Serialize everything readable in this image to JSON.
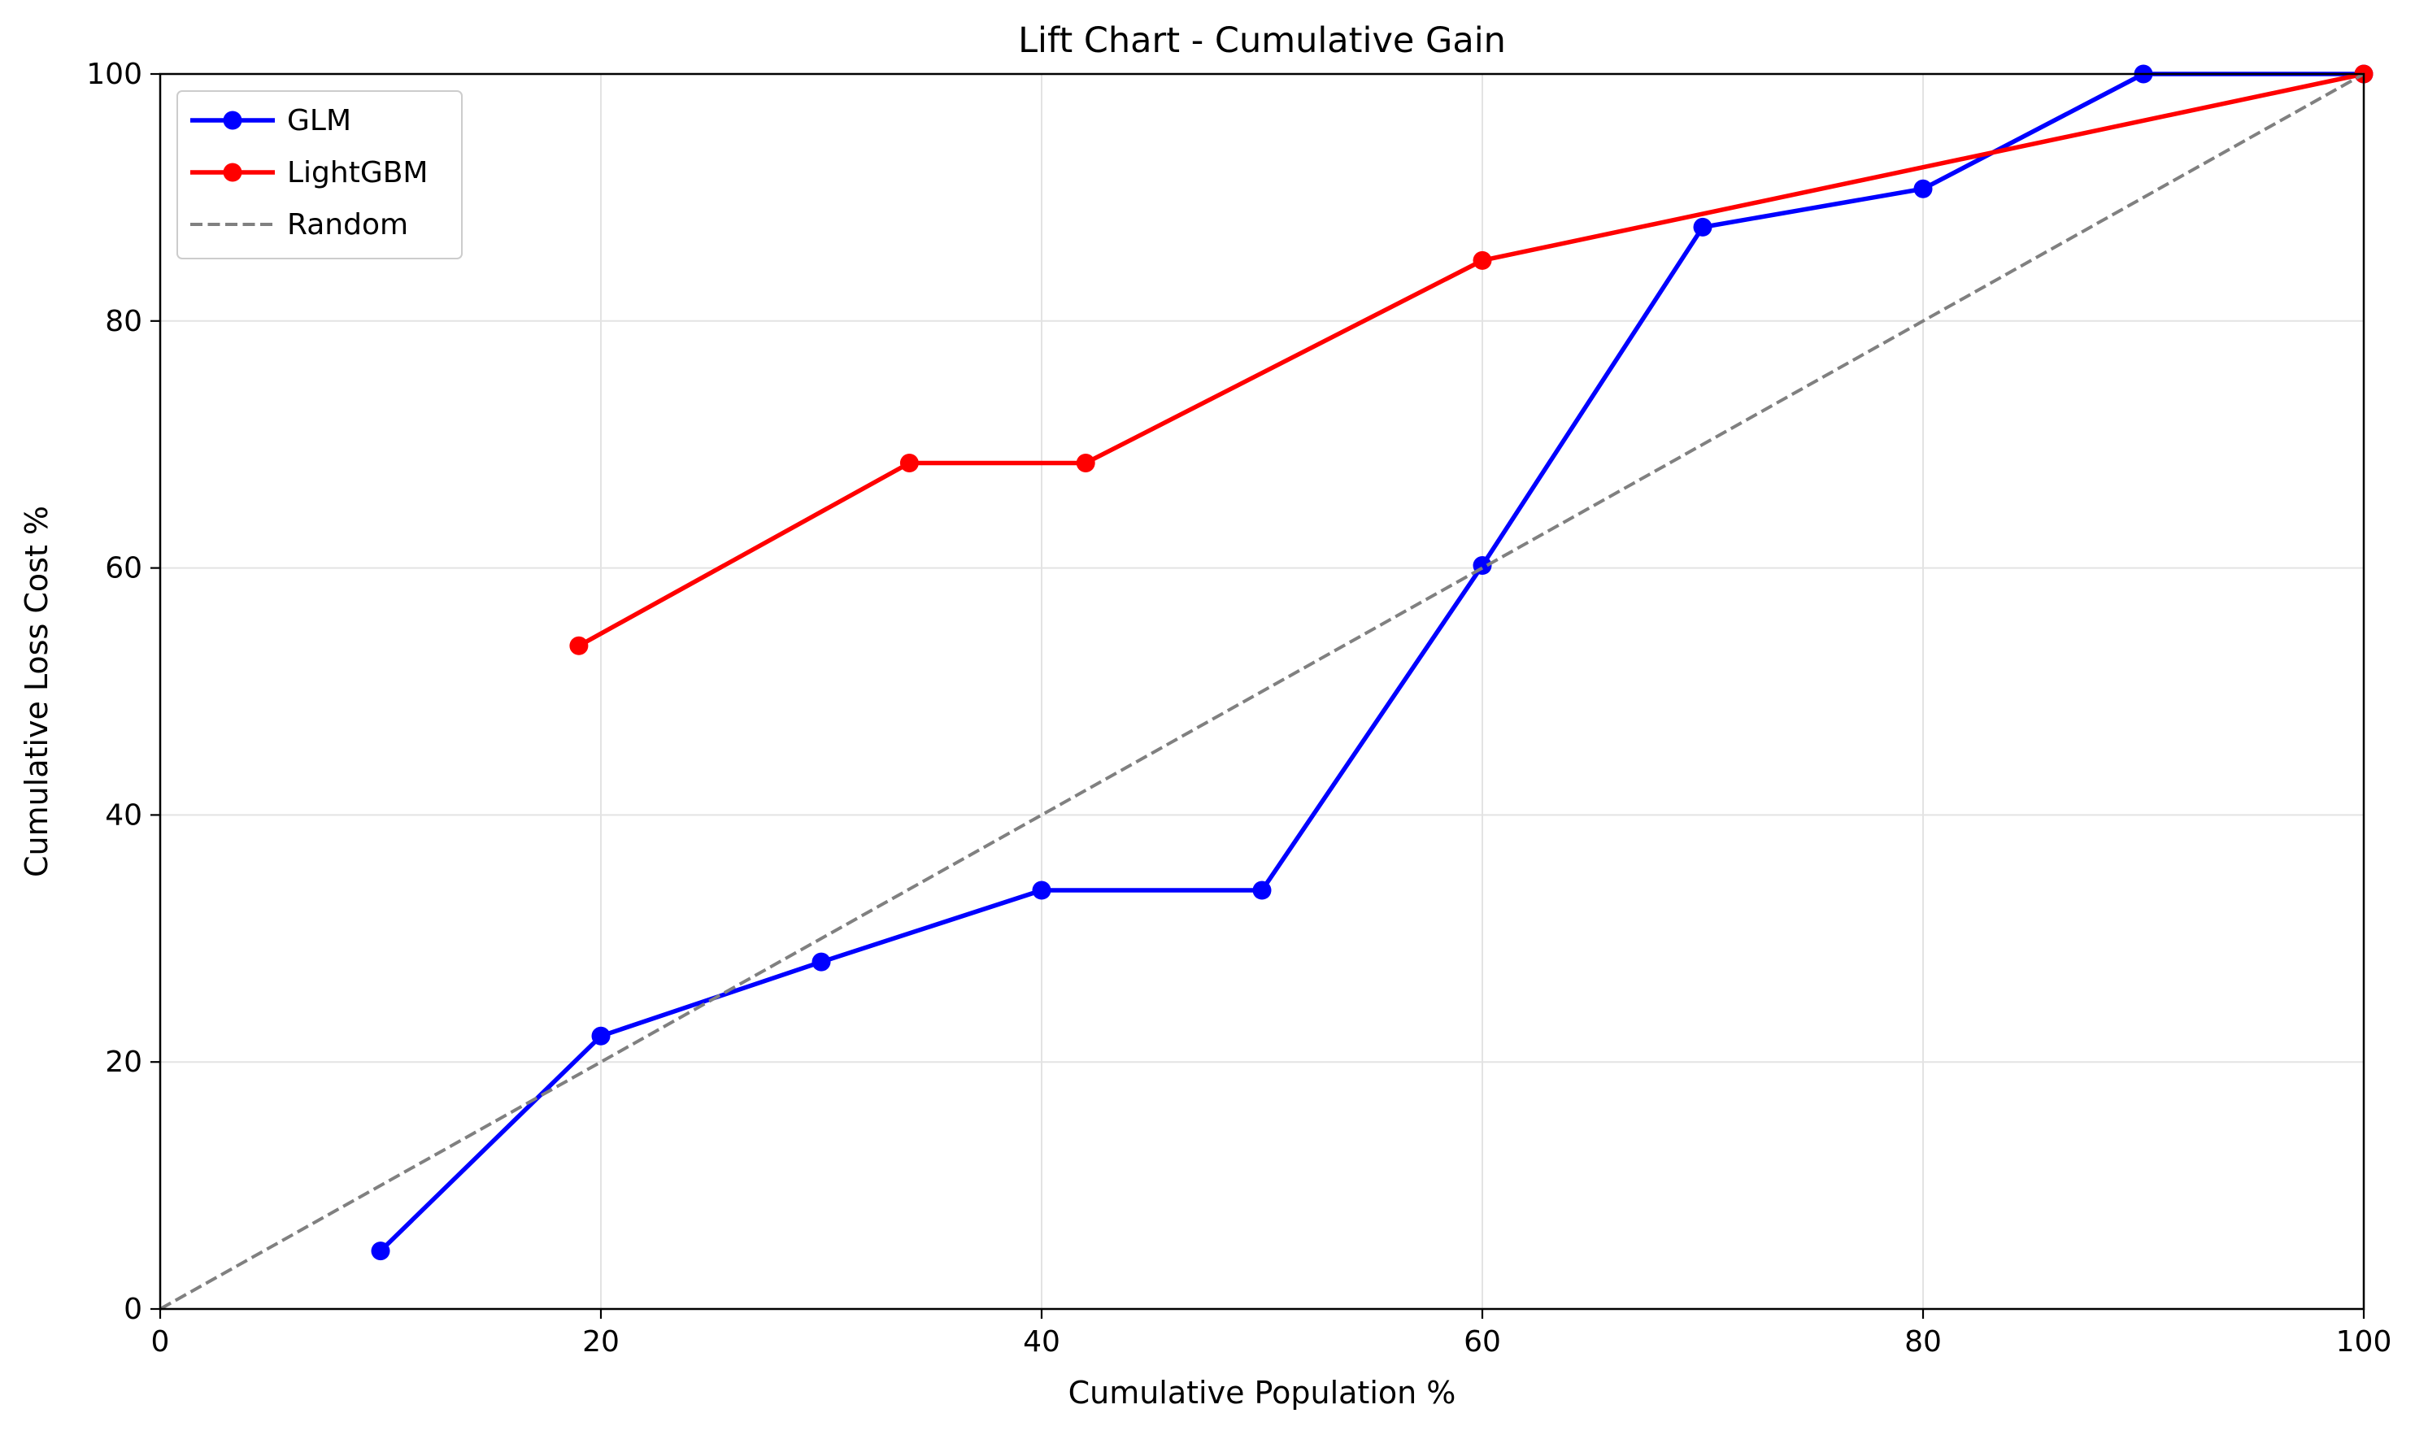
{
  "chart_data": {
    "type": "line",
    "title": "Lift Chart - Cumulative Gain",
    "xlabel": "Cumulative Population %",
    "ylabel": "Cumulative Loss Cost %",
    "xlim": [
      0,
      100
    ],
    "ylim": [
      0,
      100
    ],
    "xticks": [
      "0",
      "20",
      "40",
      "60",
      "80",
      "100"
    ],
    "yticks": [
      "0",
      "20",
      "40",
      "60",
      "80",
      "100"
    ],
    "grid": true,
    "legend_position": "top-left",
    "series": [
      {
        "name": "GLM",
        "color": "#0000ff",
        "style": "solid",
        "marker": "circle",
        "points": [
          {
            "x": 10,
            "y": 4.7
          },
          {
            "x": 20,
            "y": 22.1
          },
          {
            "x": 30,
            "y": 28.1
          },
          {
            "x": 40,
            "y": 33.9
          },
          {
            "x": 50,
            "y": 33.9
          },
          {
            "x": 60,
            "y": 60.2
          },
          {
            "x": 70,
            "y": 87.6
          },
          {
            "x": 80,
            "y": 90.7
          },
          {
            "x": 90,
            "y": 100
          },
          {
            "x": 100,
            "y": 100
          }
        ]
      },
      {
        "name": "LightGBM",
        "color": "#ff0000",
        "style": "solid",
        "marker": "circle",
        "points": [
          {
            "x": 19,
            "y": 53.7
          },
          {
            "x": 34,
            "y": 68.5
          },
          {
            "x": 42,
            "y": 68.5
          },
          {
            "x": 60,
            "y": 84.9
          },
          {
            "x": 100,
            "y": 100
          }
        ]
      },
      {
        "name": "Random",
        "color": "#808080",
        "style": "dashed",
        "marker": "none",
        "points": [
          {
            "x": 0,
            "y": 0
          },
          {
            "x": 100,
            "y": 100
          }
        ]
      }
    ]
  }
}
